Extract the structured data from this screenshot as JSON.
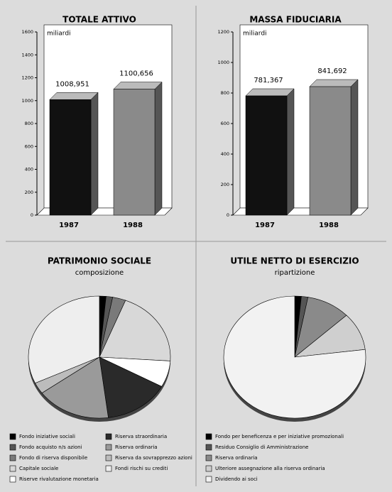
{
  "chart_data": [
    {
      "type": "bar",
      "title": "TOTALE ATTIVO",
      "annotation": "miliardi",
      "categories": [
        "1987",
        "1988"
      ],
      "values": [
        1008.951,
        1100.656
      ],
      "value_labels": [
        "1008,951",
        "1100,656"
      ],
      "colors": [
        "#111111",
        "#8a8a8a"
      ],
      "ylim": [
        0,
        1600
      ],
      "yticks": [
        0,
        200,
        400,
        600,
        800,
        1000,
        1200,
        1400,
        1600
      ]
    },
    {
      "type": "bar",
      "title": "MASSA FIDUCIARIA",
      "annotation": "miliardi",
      "categories": [
        "1987",
        "1988"
      ],
      "values": [
        781.367,
        841.692
      ],
      "value_labels": [
        "781,367",
        "841,692"
      ],
      "colors": [
        "#111111",
        "#8a8a8a"
      ],
      "ylim": [
        0,
        1200
      ],
      "yticks": [
        0,
        200,
        400,
        600,
        800,
        1000,
        1200
      ]
    },
    {
      "type": "pie",
      "title": "PATRIMONIO SOCIALE",
      "subtitle": "composizione",
      "labels": [
        "Fondo iniziative sociali",
        "Fondo acquisto n/s azioni",
        "Fondo di riserva disponibile",
        "Capitale sociale",
        "Riserve rivalutazione monetaria",
        "Riserva straordinaria",
        "Riserva ordinaria",
        "Riserva da sovrapprezzo azioni",
        "Fondi rischi su crediti"
      ],
      "values": [
        1.5,
        1.5,
        3,
        20,
        7,
        15,
        17,
        3,
        32
      ],
      "colors": [
        "#000000",
        "#555555",
        "#7a7a7a",
        "#d8d8d8",
        "#ffffff",
        "#2a2a2a",
        "#9a9a9a",
        "#bcbcbc",
        "#eeeeee"
      ]
    },
    {
      "type": "pie",
      "title": "UTILE NETTO DI ESERCIZIO",
      "subtitle": "ripartizione",
      "labels": [
        "Fondo per beneficenza e per iniziative promozionali",
        "Residuo Consiglio di Amministrazione",
        "Riserva ordinaria",
        "Ulteriore assegnazione alla riserva ordinaria",
        "Dividendo ai soci"
      ],
      "values": [
        1.5,
        1.5,
        10,
        10,
        77
      ],
      "colors": [
        "#000000",
        "#555555",
        "#8a8a8a",
        "#cfcfcf",
        "#f2f2f2"
      ]
    }
  ]
}
